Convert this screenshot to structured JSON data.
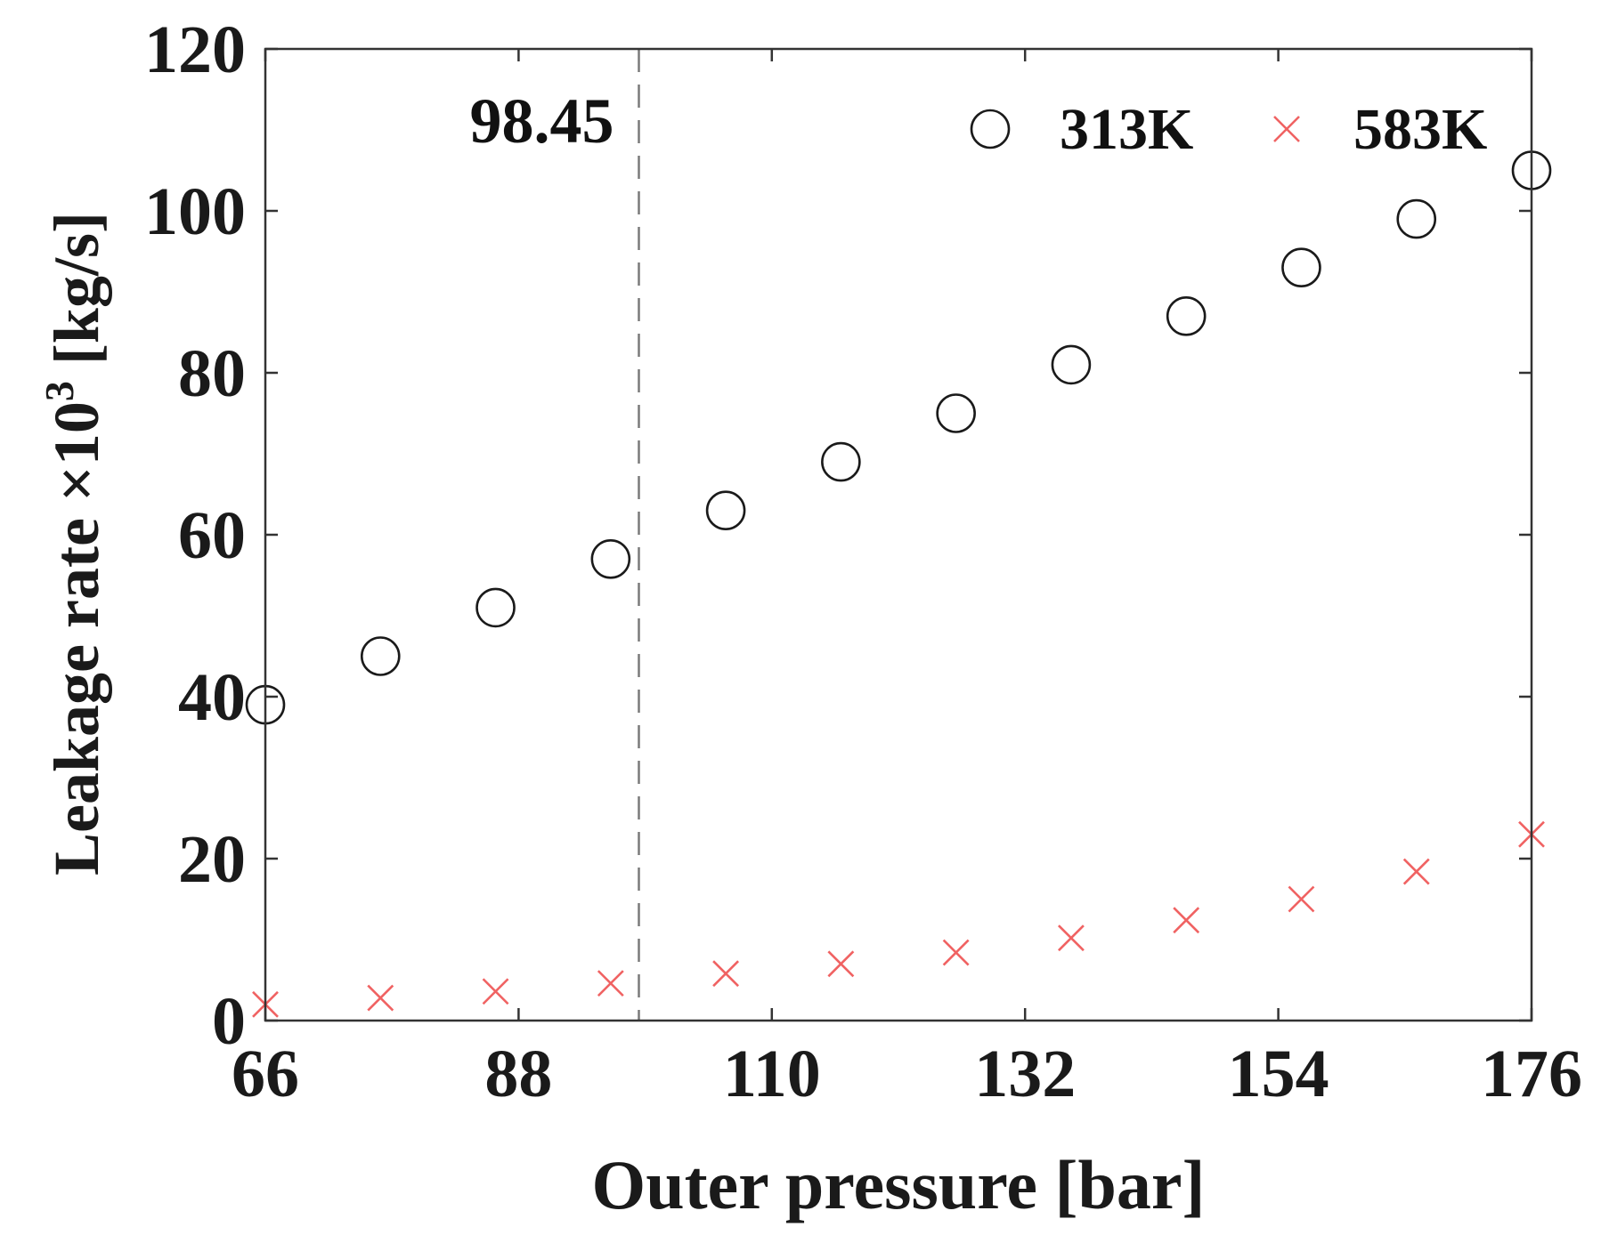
{
  "chart_data": {
    "type": "scatter",
    "xlabel": "Outer pressure [bar]",
    "ylabel_main": "Leakage rate ×10",
    "ylabel_exp": "3",
    "ylabel_unit": " [kg/s]",
    "xlim": [
      66,
      176
    ],
    "ylim": [
      0,
      120
    ],
    "xticks": [
      66,
      88,
      110,
      132,
      154,
      176
    ],
    "yticks": [
      0,
      20,
      40,
      60,
      80,
      100,
      120
    ],
    "grid": false,
    "legend_position": "top-right",
    "reference_line": {
      "x": 98.45,
      "label": "98.45",
      "style": "dashed",
      "color": "#7a7a7a"
    },
    "series": [
      {
        "name": "313K",
        "marker": "circle",
        "color": "#1a1a1a",
        "x": [
          66,
          76,
          86,
          96,
          106,
          116,
          126,
          136,
          146,
          156,
          166,
          176
        ],
        "y": [
          39,
          45,
          51,
          57,
          63,
          69,
          75,
          81,
          87,
          93,
          99,
          105
        ]
      },
      {
        "name": "583K",
        "marker": "x",
        "color": "#f06262",
        "x": [
          66,
          76,
          86,
          96,
          106,
          116,
          126,
          136,
          146,
          156,
          166,
          176
        ],
        "y": [
          2,
          2.8,
          3.6,
          4.6,
          5.8,
          7,
          8.4,
          10.2,
          12.4,
          15,
          18.4,
          23
        ]
      }
    ]
  }
}
